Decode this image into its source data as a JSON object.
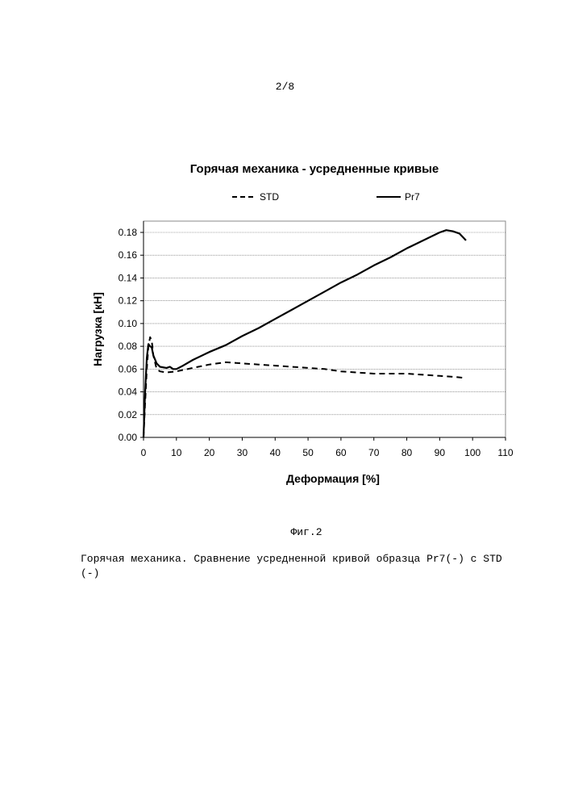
{
  "page_number": "2/8",
  "figure_label": "Фиг.2",
  "caption": "Горячая механика. Сравнение усредненной кривой образца Pr7(-) с STD (-)",
  "chart_data": {
    "type": "line",
    "title": "Горячая механика - усредненные кривые",
    "xlabel": "Деформация [%]",
    "ylabel": "Нагрузка [кН]",
    "xlim": [
      0,
      110
    ],
    "ylim": [
      0,
      0.19
    ],
    "x_ticks": [
      "0",
      "10",
      "20",
      "30",
      "40",
      "50",
      "60",
      "70",
      "80",
      "90",
      "100",
      "110"
    ],
    "y_ticks": [
      "0.00",
      "0.02",
      "0.04",
      "0.06",
      "0.08",
      "0.10",
      "0.12",
      "0.14",
      "0.16",
      "0.18"
    ],
    "grid": "horizontal",
    "legend_position": "top",
    "series": [
      {
        "name": "STD",
        "style": "dashed",
        "points": [
          [
            0,
            0
          ],
          [
            0.5,
            0.03
          ],
          [
            1,
            0.06
          ],
          [
            1.5,
            0.08
          ],
          [
            2,
            0.088
          ],
          [
            2.5,
            0.085
          ],
          [
            3,
            0.072
          ],
          [
            4,
            0.06
          ],
          [
            5,
            0.058
          ],
          [
            7,
            0.057
          ],
          [
            10,
            0.058
          ],
          [
            15,
            0.061
          ],
          [
            20,
            0.064
          ],
          [
            25,
            0.066
          ],
          [
            30,
            0.065
          ],
          [
            35,
            0.064
          ],
          [
            40,
            0.063
          ],
          [
            45,
            0.062
          ],
          [
            50,
            0.061
          ],
          [
            55,
            0.06
          ],
          [
            60,
            0.058
          ],
          [
            65,
            0.057
          ],
          [
            70,
            0.056
          ],
          [
            75,
            0.056
          ],
          [
            80,
            0.056
          ],
          [
            85,
            0.055
          ],
          [
            90,
            0.054
          ],
          [
            95,
            0.053
          ],
          [
            98,
            0.052
          ]
        ]
      },
      {
        "name": "Pr7",
        "style": "solid",
        "points": [
          [
            0,
            0
          ],
          [
            0.5,
            0.04
          ],
          [
            1,
            0.07
          ],
          [
            1.5,
            0.082
          ],
          [
            2,
            0.08
          ],
          [
            2.5,
            0.079
          ],
          [
            3,
            0.072
          ],
          [
            4,
            0.065
          ],
          [
            5,
            0.062
          ],
          [
            7,
            0.061
          ],
          [
            8,
            0.062
          ],
          [
            9,
            0.06
          ],
          [
            10,
            0.06
          ],
          [
            12,
            0.063
          ],
          [
            15,
            0.068
          ],
          [
            20,
            0.075
          ],
          [
            25,
            0.081
          ],
          [
            30,
            0.089
          ],
          [
            35,
            0.096
          ],
          [
            40,
            0.104
          ],
          [
            45,
            0.112
          ],
          [
            50,
            0.12
          ],
          [
            55,
            0.128
          ],
          [
            60,
            0.136
          ],
          [
            65,
            0.143
          ],
          [
            70,
            0.151
          ],
          [
            75,
            0.158
          ],
          [
            80,
            0.166
          ],
          [
            85,
            0.173
          ],
          [
            90,
            0.18
          ],
          [
            92,
            0.182
          ],
          [
            94,
            0.181
          ],
          [
            96,
            0.179
          ],
          [
            98,
            0.173
          ]
        ]
      }
    ]
  }
}
